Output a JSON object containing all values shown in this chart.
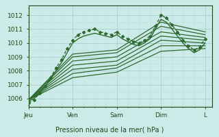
{
  "bg_color": "#cceae8",
  "grid_color_major": "#aad4d0",
  "grid_color_minor": "#bce0dc",
  "line_color": "#2d6a2d",
  "title": "Pression niveau de la mer( hPa )",
  "xlabels": [
    "Jeu",
    "Ven",
    "Sam",
    "Dim",
    "L"
  ],
  "xtick_positions": [
    0,
    24,
    48,
    72,
    96
  ],
  "xlim": [
    0,
    100
  ],
  "ylim": [
    1005.4,
    1012.7
  ],
  "yticks": [
    1006,
    1007,
    1008,
    1009,
    1010,
    1011,
    1012
  ],
  "lines": [
    {
      "x": [
        0,
        3,
        6,
        9,
        12,
        15,
        18,
        21,
        24,
        27,
        30,
        33,
        36,
        39,
        42,
        45,
        48,
        51,
        54,
        57,
        60,
        63,
        66,
        69,
        72,
        75,
        78,
        81,
        84,
        87,
        90,
        93,
        96
      ],
      "y": [
        1005.7,
        1005.9,
        1006.4,
        1006.9,
        1007.5,
        1008.2,
        1008.8,
        1009.6,
        1010.2,
        1010.6,
        1010.8,
        1010.9,
        1011.0,
        1010.8,
        1010.7,
        1010.6,
        1010.8,
        1010.5,
        1010.3,
        1010.1,
        1010.0,
        1010.2,
        1010.5,
        1011.2,
        1012.0,
        1011.8,
        1011.3,
        1010.8,
        1010.2,
        1009.8,
        1009.5,
        1009.7,
        1010.3
      ],
      "style": "dotted",
      "marker": "D",
      "ms": 2.0,
      "lw": 1.0
    },
    {
      "x": [
        0,
        3,
        6,
        9,
        12,
        15,
        18,
        21,
        24,
        27,
        30,
        33,
        36,
        39,
        42,
        45,
        48,
        51,
        54,
        57,
        60,
        63,
        66,
        69,
        72,
        75,
        78,
        81,
        84,
        87,
        90,
        93,
        96
      ],
      "y": [
        1005.8,
        1006.0,
        1006.4,
        1006.9,
        1007.4,
        1008.0,
        1008.6,
        1009.3,
        1010.0,
        1010.3,
        1010.5,
        1010.6,
        1010.7,
        1010.6,
        1010.5,
        1010.4,
        1010.6,
        1010.3,
        1010.1,
        1009.9,
        1009.8,
        1010.0,
        1010.3,
        1011.0,
        1011.7,
        1011.5,
        1011.0,
        1010.5,
        1010.0,
        1009.6,
        1009.3,
        1009.5,
        1010.0
      ],
      "style": "solid",
      "marker": null,
      "ms": 0,
      "lw": 1.0
    },
    {
      "x": [
        0,
        24,
        48,
        72,
        96
      ],
      "y": [
        1005.9,
        1009.2,
        1009.5,
        1011.5,
        1010.8
      ],
      "style": "solid",
      "marker": null,
      "ms": 0,
      "lw": 0.9
    },
    {
      "x": [
        0,
        24,
        48,
        72,
        96
      ],
      "y": [
        1005.9,
        1009.0,
        1009.3,
        1011.2,
        1010.6
      ],
      "style": "solid",
      "marker": null,
      "ms": 0,
      "lw": 0.9
    },
    {
      "x": [
        0,
        24,
        48,
        72,
        96
      ],
      "y": [
        1005.9,
        1008.7,
        1009.0,
        1010.8,
        1010.4
      ],
      "style": "solid",
      "marker": null,
      "ms": 0,
      "lw": 0.9
    },
    {
      "x": [
        0,
        24,
        48,
        72,
        96
      ],
      "y": [
        1005.9,
        1008.4,
        1008.7,
        1010.5,
        1010.2
      ],
      "style": "solid",
      "marker": null,
      "ms": 0,
      "lw": 0.9
    },
    {
      "x": [
        0,
        24,
        48,
        72,
        96
      ],
      "y": [
        1005.9,
        1008.1,
        1008.4,
        1010.2,
        1010.0
      ],
      "style": "solid",
      "marker": null,
      "ms": 0,
      "lw": 0.9
    },
    {
      "x": [
        0,
        24,
        48,
        72,
        96
      ],
      "y": [
        1005.9,
        1007.8,
        1008.2,
        1009.8,
        1009.8
      ],
      "style": "solid",
      "marker": null,
      "ms": 0,
      "lw": 0.9
    },
    {
      "x": [
        0,
        24,
        48,
        72,
        96
      ],
      "y": [
        1005.9,
        1007.5,
        1007.9,
        1009.4,
        1009.6
      ],
      "style": "solid",
      "marker": null,
      "ms": 0,
      "lw": 0.9
    }
  ]
}
